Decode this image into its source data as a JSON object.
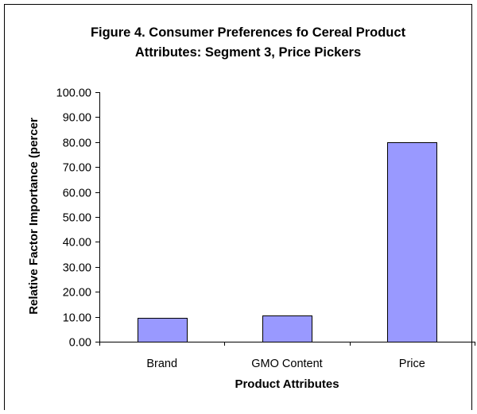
{
  "chart_data": {
    "type": "bar",
    "title_line1": "Figure 4. Consumer Preferences fo Cereal Product",
    "title_line2": "Attributes: Segment 3, Price Pickers",
    "xlabel": "Product Attributes",
    "ylabel": "Relative Factor Importance (percer",
    "categories": [
      "Brand",
      "GMO Content",
      "Price"
    ],
    "values": [
      9.4,
      10.6,
      80.0
    ],
    "y_ticks": [
      "0.00",
      "10.00",
      "20.00",
      "30.00",
      "40.00",
      "50.00",
      "60.00",
      "70.00",
      "80.00",
      "90.00",
      "100.00"
    ],
    "ylim": [
      0,
      100
    ],
    "grid": false,
    "legend": "none",
    "bar_color": "#9999ff",
    "bar_edge_color": "#000000"
  }
}
